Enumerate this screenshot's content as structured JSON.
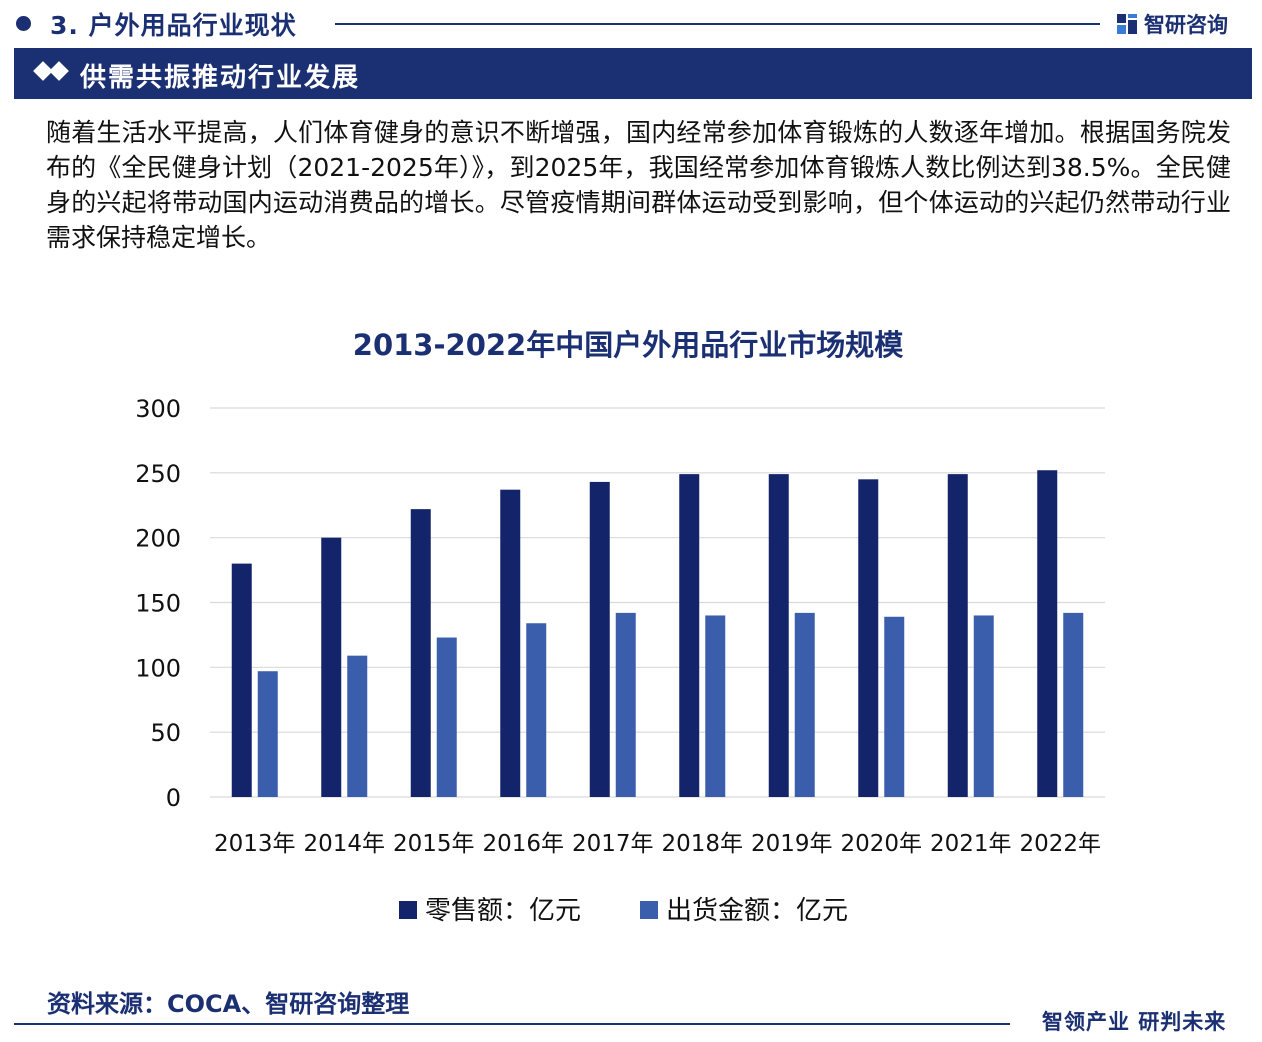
{
  "header": {
    "section_title": "3. 户外用品行业现状",
    "brand_name": "智研咨询",
    "brand_icon": "zhiyan-logo-icon"
  },
  "banner": {
    "title": "供需共振推动行业发展",
    "icon": "double-diamond-icon"
  },
  "intro_text": "随着生活水平提高，人们体育健身的意识不断增强，国内经常参加体育锻炼的人数逐年增加。根据国务院发布的《全民健身计划（2021-2025年）》，到2025年，我国经常参加体育锻炼人数比例达到38.5%。全民健身的兴起将带动国内运动消费品的增长。尽管疫情期间群体运动受到影响，但个体运动的兴起仍然带动行业需求保持稳定增长。",
  "chart_data": {
    "type": "bar",
    "title": "2013-2022年中国户外用品行业市场规模",
    "categories": [
      "2013年",
      "2014年",
      "2015年",
      "2016年",
      "2017年",
      "2018年",
      "2019年",
      "2020年",
      "2021年",
      "2022年"
    ],
    "series": [
      {
        "name": "零售额：亿元",
        "color": "#13246b",
        "values": [
          180,
          200,
          222,
          237,
          243,
          249,
          249,
          245,
          249,
          252
        ]
      },
      {
        "name": "出货金额：亿元",
        "color": "#3a5eab",
        "values": [
          97,
          109,
          123,
          134,
          142,
          140,
          142,
          139,
          140,
          142
        ]
      }
    ],
    "ylim": [
      0,
      300
    ],
    "yticks": [
      0,
      50,
      100,
      150,
      200,
      250,
      300
    ],
    "xlabel": "",
    "ylabel": "",
    "grid": true,
    "legend": "bottom"
  },
  "footer": {
    "source": "资料来源：COCA、智研咨询整理",
    "slogan": "智领产业 研判未来"
  }
}
